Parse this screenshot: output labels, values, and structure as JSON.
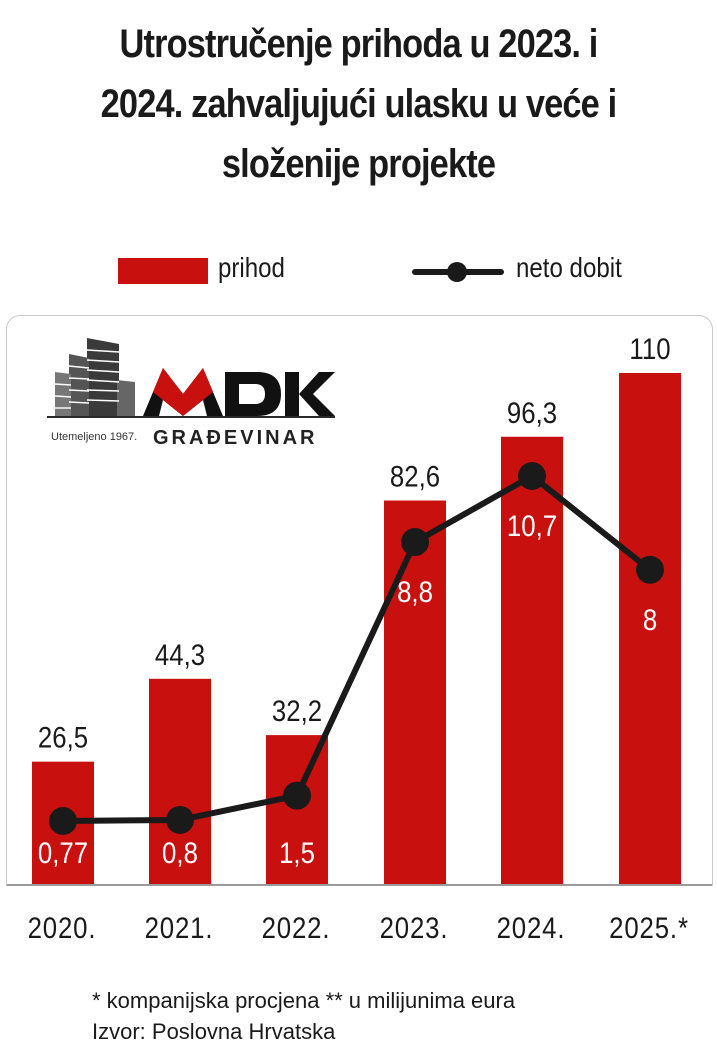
{
  "title_lines": [
    "Utrostručenje prihoda u 2023. i",
    "2024. zahvaljujući ulasku u veće i",
    "složenije projekte"
  ],
  "legend": {
    "revenue": "prihod",
    "net_profit": "neto dobit"
  },
  "logo": {
    "brand": "MDK",
    "subtitle": "GRAĐEVINAR",
    "founded": "Utemeljeno 1967."
  },
  "footer": {
    "note": "* kompanijska  procjena   ** u milijunima  eura",
    "source": "Izvor: Poslovna  Hrvatska"
  },
  "colors": {
    "revenue": "#c8100f",
    "net_profit": "#1a1a1a",
    "axis": "#9a9a9a",
    "label_dark": "#1a1a1a",
    "label_light": "#ffffff"
  },
  "chart_data": {
    "type": "bar",
    "categories": [
      "2020.",
      "2021.",
      "2022.",
      "2023.",
      "2024.",
      "2025.*"
    ],
    "series": [
      {
        "name": "prihod",
        "type": "bar",
        "values": [
          26.5,
          44.3,
          32.2,
          82.6,
          96.3,
          110
        ],
        "labels": [
          "26,5",
          "44,3",
          "32,2",
          "82,6",
          "96,3",
          "110"
        ]
      },
      {
        "name": "neto dobit",
        "type": "line",
        "values": [
          0.77,
          0.8,
          1.5,
          8.8,
          10.7,
          8
        ],
        "labels": [
          "0,77",
          "0,8",
          "1,5",
          "8,8",
          "10,7",
          "8"
        ]
      }
    ],
    "title": "Utrostručenje prihoda u 2023. i 2024. zahvaljujući ulasku u veće i složenije projekte",
    "xlabel": "",
    "ylabel": "",
    "ylim_revenue": [
      0,
      120
    ],
    "ylim_net_profit": [
      0,
      12.5
    ],
    "grid": false,
    "legend_position": "top"
  }
}
